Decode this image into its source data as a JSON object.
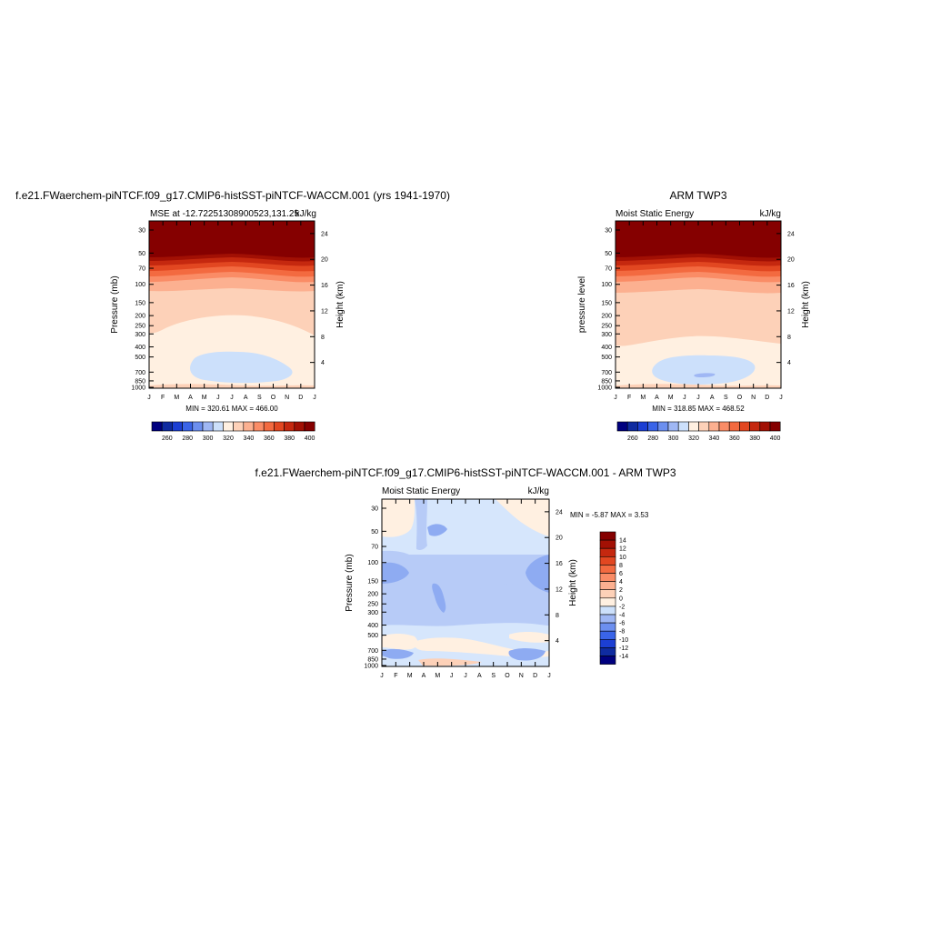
{
  "chart_data": [
    {
      "type": "heatmap",
      "title": "f.e21.FWaerchem-piNTCF.f09_g17.CMIP6-histSST-piNTCF-WACCM.001 (yrs 1941-1970)",
      "left_subtitle": "MSE at -12.72251308900523,131.25",
      "right_subtitle": "kJ/kg",
      "ylabel": "Pressure (mb)",
      "ylabel_right": "Height (km)",
      "x_ticks": [
        "J",
        "F",
        "M",
        "A",
        "M",
        "J",
        "J",
        "A",
        "S",
        "O",
        "N",
        "D",
        "J"
      ],
      "y_ticks": [
        "30",
        "50",
        "70",
        "100",
        "150",
        "200",
        "250",
        "300",
        "400",
        "500",
        "700",
        "850",
        "1000"
      ],
      "y_right_ticks": [
        "24",
        "20",
        "16",
        "12",
        "8",
        "4"
      ],
      "stats_text": "MIN = 320.61 MAX = 466.00",
      "levels": [
        260,
        270,
        280,
        290,
        300,
        310,
        320,
        330,
        340,
        350,
        360,
        370,
        380,
        390,
        400
      ],
      "colorbar_labels": [
        "260",
        "280",
        "300",
        "320",
        "340",
        "360",
        "380",
        "400"
      ],
      "min": 320.61,
      "max": 466.0
    },
    {
      "type": "heatmap",
      "title": "ARM TWP3",
      "left_subtitle": "Moist Static Energy",
      "right_subtitle": "kJ/kg",
      "ylabel": "pressure level",
      "ylabel_right": "Height (km)",
      "x_ticks": [
        "J",
        "F",
        "M",
        "A",
        "M",
        "J",
        "J",
        "A",
        "S",
        "O",
        "N",
        "D",
        "J"
      ],
      "y_ticks": [
        "30",
        "50",
        "70",
        "100",
        "150",
        "200",
        "250",
        "300",
        "400",
        "500",
        "700",
        "850",
        "1000"
      ],
      "y_right_ticks": [
        "24",
        "20",
        "16",
        "12",
        "8",
        "4"
      ],
      "stats_text": "MIN = 318.85 MAX = 468.52",
      "levels": [
        260,
        270,
        280,
        290,
        300,
        310,
        320,
        330,
        340,
        350,
        360,
        370,
        380,
        390,
        400
      ],
      "colorbar_labels": [
        "260",
        "280",
        "300",
        "320",
        "340",
        "360",
        "380",
        "400"
      ],
      "min": 318.85,
      "max": 468.52
    },
    {
      "type": "heatmap",
      "title": "f.e21.FWaerchem-piNTCF.f09_g17.CMIP6-histSST-piNTCF-WACCM.001 - ARM TWP3",
      "left_subtitle": "Moist Static Energy",
      "right_subtitle": "kJ/kg",
      "ylabel": "Pressure (mb)",
      "ylabel_right": "Height (km)",
      "x_ticks": [
        "J",
        "F",
        "M",
        "A",
        "M",
        "J",
        "J",
        "A",
        "S",
        "O",
        "N",
        "D",
        "J"
      ],
      "y_ticks": [
        "30",
        "50",
        "70",
        "100",
        "150",
        "200",
        "250",
        "300",
        "400",
        "500",
        "700",
        "850",
        "1000"
      ],
      "y_right_ticks": [
        "24",
        "20",
        "16",
        "12",
        "8",
        "4"
      ],
      "stats_text": "MIN =  -5.87 MAX =   3.53",
      "levels": [
        -14,
        -12,
        -10,
        -8,
        -6,
        -4,
        -2,
        0,
        2,
        4,
        6,
        8,
        10,
        12,
        14
      ],
      "colorbar_labels": [
        "14",
        "12",
        "10",
        "8",
        "6",
        "4",
        "2",
        "0",
        "-2",
        "-4",
        "-6",
        "-8",
        "-10",
        "-12",
        "-14"
      ],
      "min": -5.87,
      "max": 3.53
    }
  ],
  "colors": {
    "palette_16": [
      "#00007f",
      "#0f2ba0",
      "#1c3fd3",
      "#3a64e8",
      "#6c8fef",
      "#9fb7f4",
      "#cce0fb",
      "#fff0e1",
      "#fdd1b8",
      "#fcb090",
      "#fa8c66",
      "#f36a40",
      "#e24721",
      "#c5280f",
      "#a21004",
      "#850000"
    ]
  }
}
